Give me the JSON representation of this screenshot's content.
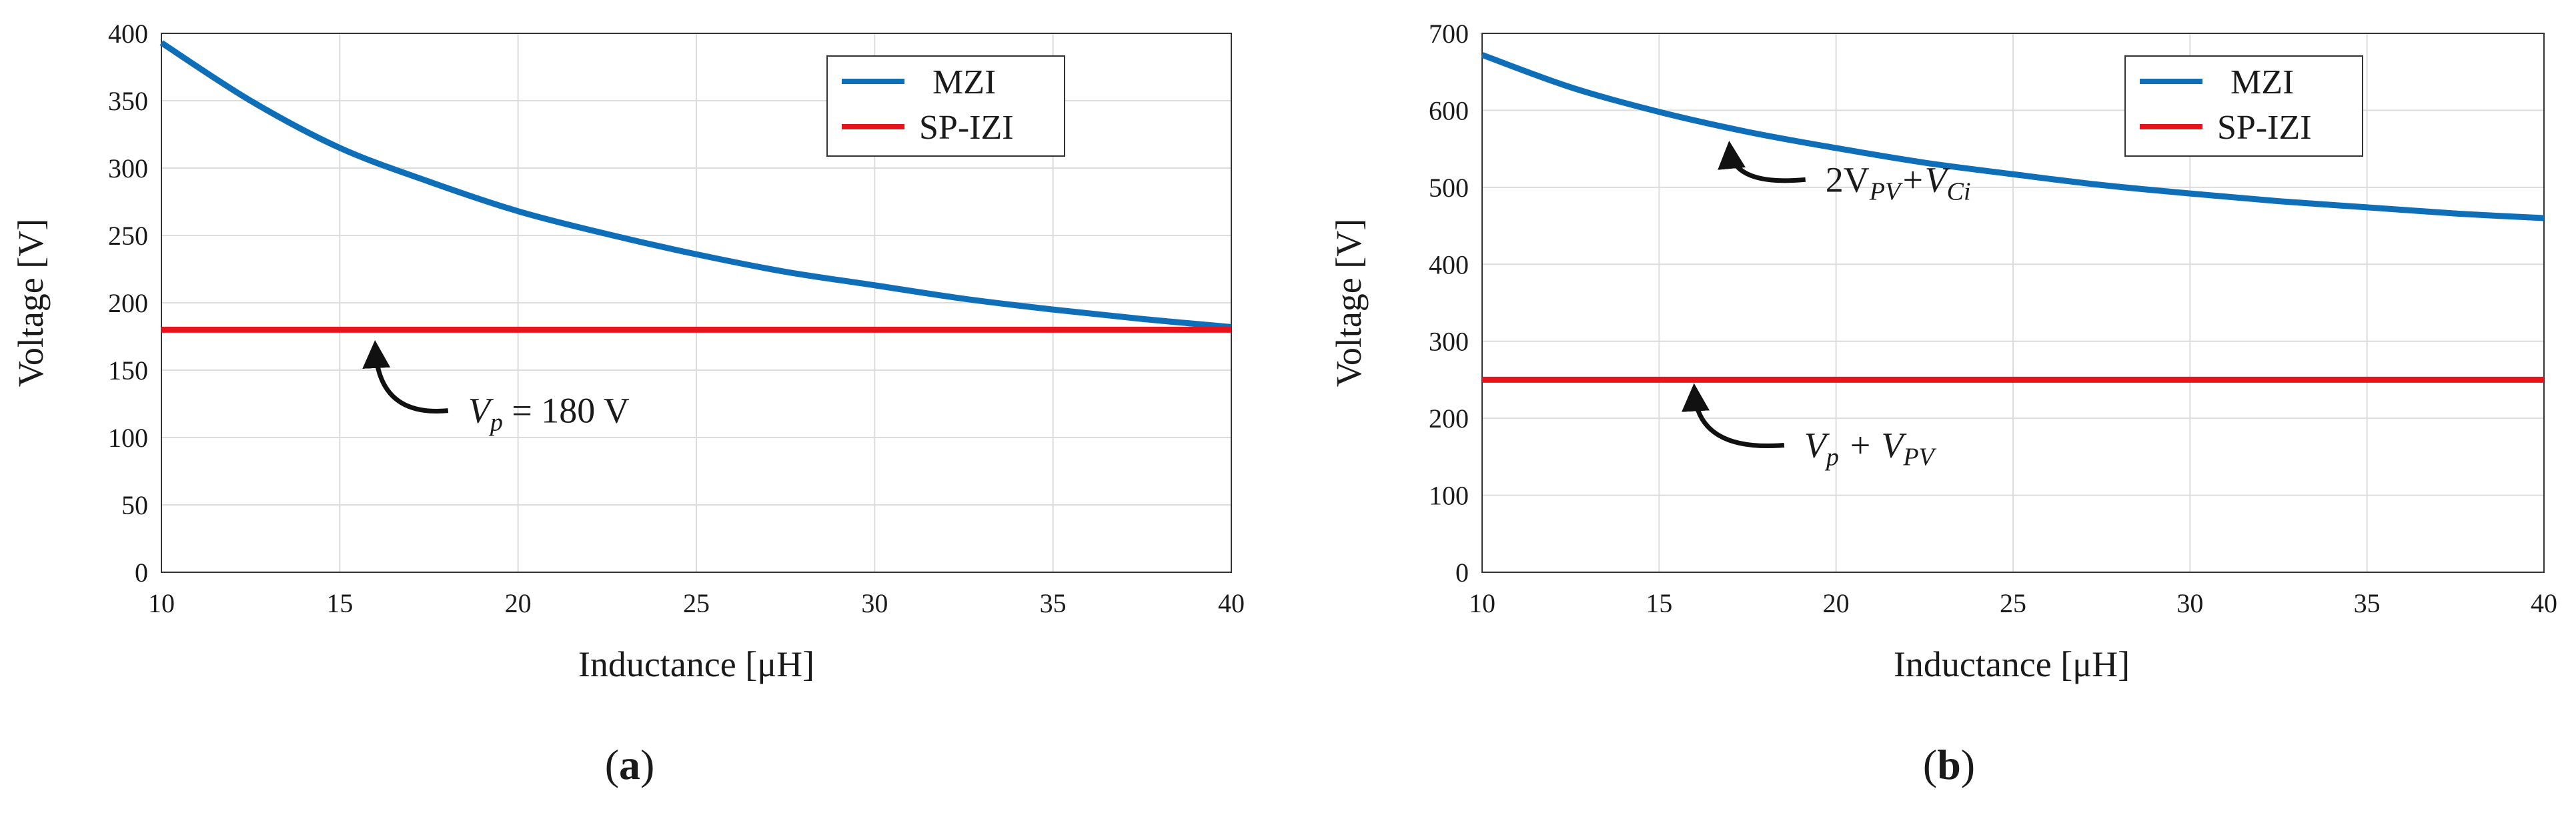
{
  "chart_data": [
    {
      "id": "a",
      "type": "line",
      "caption_label": "a",
      "xlabel": "Inductance [μH]",
      "ylabel": "Voltage [V]",
      "xlim": [
        10,
        40
      ],
      "ylim": [
        0,
        400
      ],
      "xticks": [
        10,
        15,
        20,
        25,
        30,
        35,
        40
      ],
      "yticks": [
        0,
        50,
        100,
        150,
        200,
        250,
        300,
        350,
        400
      ],
      "grid": true,
      "legend": "top-right",
      "series": [
        {
          "name": "MZI",
          "color": "#0e6fb8",
          "x": [
            10,
            12.5,
            15,
            17.5,
            20,
            22.5,
            25,
            27.5,
            30,
            32.5,
            35,
            37.5,
            40
          ],
          "y": [
            393,
            350,
            315,
            290,
            268,
            251,
            236,
            223,
            213,
            203,
            195,
            188,
            182
          ]
        },
        {
          "name": "SP-IZI",
          "color": "#e8141b",
          "x": [
            10,
            40
          ],
          "y": [
            180,
            180
          ]
        }
      ],
      "annotations": [
        {
          "text_main": "V",
          "text_sub": "p",
          "text_rest": " = 180 V",
          "point_x": 16.0,
          "point_y": 172,
          "text_x": 18.6,
          "text_y": 120
        }
      ]
    },
    {
      "id": "b",
      "type": "line",
      "caption_label": "b",
      "xlabel": "Inductance [μH]",
      "ylabel": "Voltage [V]",
      "xlim": [
        10,
        40
      ],
      "ylim": [
        0,
        700
      ],
      "xticks": [
        10,
        15,
        20,
        25,
        30,
        35,
        40
      ],
      "yticks": [
        0,
        100,
        200,
        300,
        400,
        500,
        600,
        700
      ],
      "grid": true,
      "legend": "top-right",
      "series": [
        {
          "name": "MZI",
          "color": "#0e6fb8",
          "x": [
            10,
            12.5,
            15,
            17.5,
            20,
            22.5,
            25,
            27.5,
            30,
            32.5,
            35,
            37.5,
            40
          ],
          "y": [
            672,
            630,
            598,
            572,
            551,
            532,
            517,
            503,
            492,
            482,
            474,
            466,
            460
          ]
        },
        {
          "name": "SP-IZI",
          "color": "#e8141b",
          "x": [
            10,
            40
          ],
          "y": [
            250,
            250
          ]
        }
      ],
      "annotations": [
        {
          "text": "2V",
          "sub1": "PV",
          "plus": "+V",
          "sub2": "Ci",
          "point_x": 17.0,
          "point_y": 560,
          "text_x": 19.7,
          "text_y": 510
        },
        {
          "text": "V",
          "sub1": "p",
          "plus": " + V",
          "sub2": "PV",
          "point_x": 16.0,
          "point_y": 245,
          "text_x": 19.1,
          "text_y": 165
        }
      ]
    }
  ]
}
